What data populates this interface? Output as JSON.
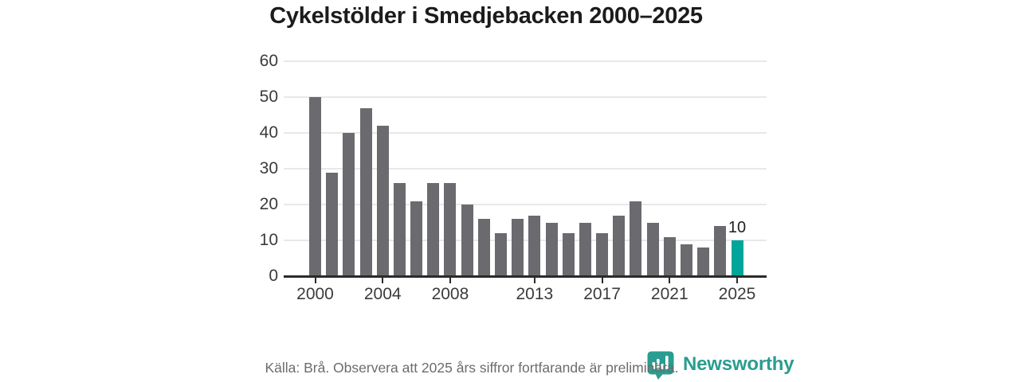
{
  "chart_data": {
    "type": "bar",
    "title": "Cykelstölder i Smedjebacken 2000–2025",
    "categories": [
      "2000",
      "2001",
      "2002",
      "2003",
      "2004",
      "2005",
      "2006",
      "2007",
      "2008",
      "2009",
      "2010",
      "2011",
      "2012",
      "2013",
      "2014",
      "2015",
      "2016",
      "2017",
      "2018",
      "2019",
      "2020",
      "2021",
      "2022",
      "2023",
      "2024",
      "2025"
    ],
    "values": [
      50,
      29,
      40,
      47,
      42,
      26,
      21,
      26,
      26,
      20,
      16,
      12,
      16,
      17,
      15,
      12,
      15,
      12,
      17,
      21,
      15,
      11,
      9,
      8,
      14,
      10
    ],
    "xlabel": "",
    "ylabel": "",
    "ylim": [
      0,
      60
    ],
    "yticks": [
      0,
      10,
      20,
      30,
      40,
      50,
      60
    ],
    "xtick_labels": [
      "2000",
      "2004",
      "2008",
      "2013",
      "2017",
      "2021",
      "2025"
    ],
    "grid": true,
    "legend_position": "none",
    "highlight": {
      "category": "2025",
      "value_label": "10"
    },
    "colors": {
      "bar": "#6b6a6f",
      "highlight": "#00a59c",
      "gridline": "#e8e8e8",
      "axis_line": "#2b2b2b",
      "tick_label": "#3b3b3b",
      "data_label": "#1f1f1f"
    }
  },
  "footer": {
    "source_text": "Källa: Brå. Observera att 2025 års siffror fortfarande är preliminära.",
    "brand_name": "Newsworthy",
    "brand_color": "#2a9d90"
  }
}
